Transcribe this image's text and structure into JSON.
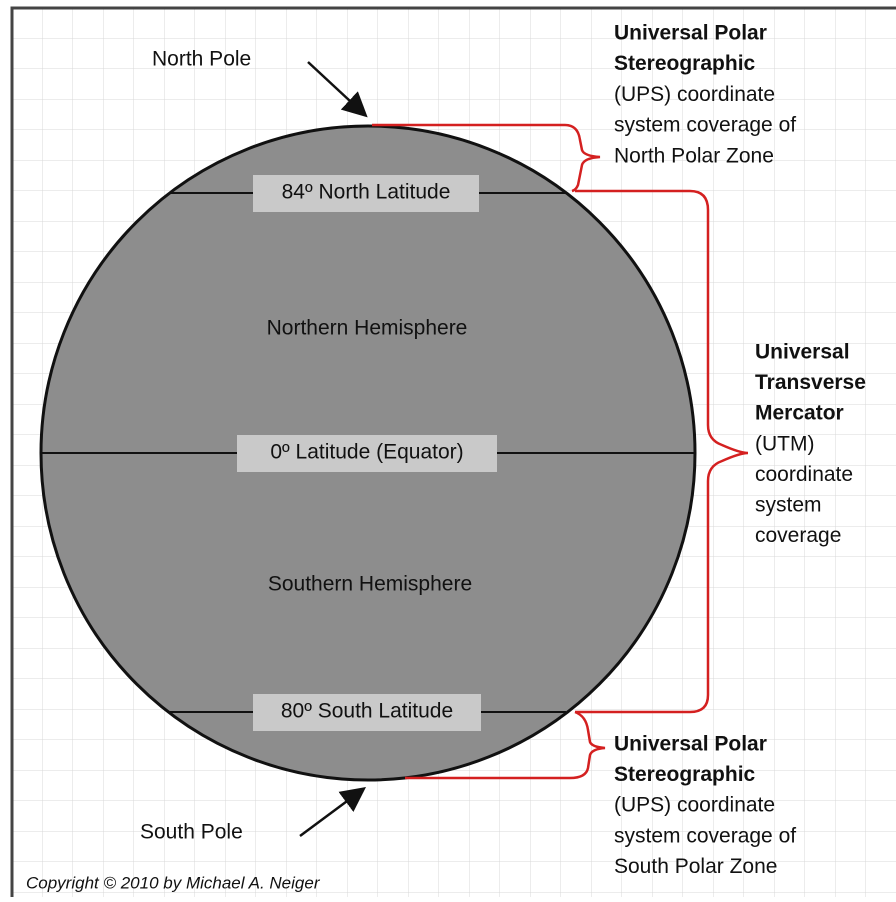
{
  "labels": {
    "north_pole": "North Pole",
    "south_pole": "South Pole",
    "lat_84": "84º North Latitude",
    "equator": "0º  Latitude (Equator)",
    "lat_80": "80º South Latitude",
    "northern": "Northern Hemisphere",
    "southern": "Southern Hemisphere"
  },
  "ups_north": {
    "title": [
      "Universal Polar",
      "Stereographic"
    ],
    "lines": [
      "(UPS) coordinate",
      "system coverage of",
      "North Polar Zone"
    ]
  },
  "utm": {
    "title": [
      "Universal",
      "Transverse",
      "Mercator"
    ],
    "lines": [
      "(UTM)",
      "coordinate",
      "system",
      "coverage"
    ]
  },
  "ups_south": {
    "title": [
      "Universal Polar",
      "Stereographic"
    ],
    "lines": [
      "(UPS) coordinate",
      "system coverage of",
      "South Polar Zone"
    ]
  },
  "copyright": "Copyright © 2010 by Michael A. Neiger"
}
